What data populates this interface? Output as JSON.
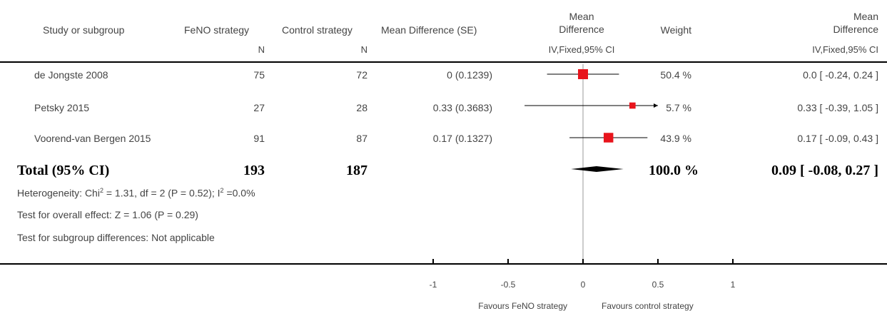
{
  "header": {
    "study": "Study or subgroup",
    "group1": "FeNO strategy",
    "group2": "Control strategy",
    "md_se": "Mean Difference (SE)",
    "plot_title_line1": "Mean",
    "plot_title_line2": "Difference",
    "weight": "Weight",
    "est_title_line1": "Mean",
    "est_title_line2": "Difference",
    "n1": "N",
    "n2": "N",
    "plot_method": "IV,Fixed,95% CI",
    "est_method": "IV,Fixed,95% CI"
  },
  "studies": [
    {
      "name": "de Jongste 2008",
      "n1": "75",
      "n2": "72",
      "md_se": "0 (0.1239)",
      "weight": "50.4 %",
      "estimate": "0.0 [ -0.24, 0.24 ]"
    },
    {
      "name": "Petsky 2015",
      "n1": "27",
      "n2": "28",
      "md_se": "0.33 (0.3683)",
      "weight": "5.7 %",
      "estimate": "0.33 [ -0.39, 1.05 ]"
    },
    {
      "name": "Voorend-van Bergen 2015",
      "n1": "91",
      "n2": "87",
      "md_se": "0.17 (0.1327)",
      "weight": "43.9 %",
      "estimate": "0.17 [ -0.09, 0.43 ]"
    }
  ],
  "total": {
    "label": "Total (95% CI)",
    "n1": "193",
    "n2": "187",
    "weight": "100.0 %",
    "estimate": "0.09 [ -0.08, 0.27 ]"
  },
  "footnotes": {
    "heterogeneity_prefix": "Heterogeneity: Chi",
    "heterogeneity_sup1": "2",
    "heterogeneity_mid": " = 1.31, df = 2 (P = 0.52); I",
    "heterogeneity_sup2": "2",
    "heterogeneity_suffix": " =0.0%",
    "overall": "Test for overall effect: Z = 1.06 (P = 0.29)",
    "subgroup": "Test for subgroup differences: Not applicable"
  },
  "axis": {
    "favours_left": "Favours FeNO strategy",
    "favours_right": "Favours control strategy"
  },
  "chart_data": {
    "type": "forest",
    "xlim": [
      -1,
      1
    ],
    "ticks": [
      -1,
      -0.5,
      0,
      0.5,
      1
    ],
    "tick_labels": [
      "-1",
      "-0.5",
      "0",
      "0.5",
      "1"
    ],
    "points": [
      {
        "study": "de Jongste 2008",
        "md": 0.0,
        "lo": -0.24,
        "hi": 0.24,
        "weight": 50.4
      },
      {
        "study": "Petsky 2015",
        "md": 0.33,
        "lo": -0.39,
        "hi": 1.05,
        "weight": 5.7
      },
      {
        "study": "Voorend-van Bergen 2015",
        "md": 0.17,
        "lo": -0.09,
        "hi": 0.43,
        "weight": 43.9
      }
    ],
    "pooled": {
      "md": 0.09,
      "lo": -0.08,
      "hi": 0.27
    },
    "marker_color": "#e8141c",
    "diamond_color": "#000000"
  }
}
